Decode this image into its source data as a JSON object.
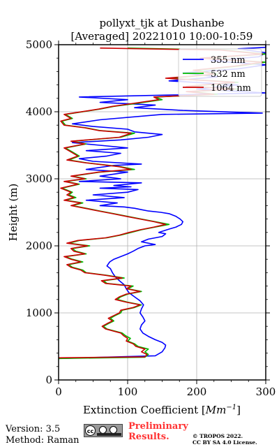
{
  "chart_data": {
    "type": "line",
    "title": [
      "pollyxt_tjk at Dushanbe",
      "[Averaged] 20221010 10:00-10:59"
    ],
    "xlabel_main": "Extinction Coefficient [",
    "xlabel_unit": "Mm",
    "xlabel_exp": "−1",
    "xlabel_end": "]",
    "ylabel": "Height (m)",
    "xlim": [
      0,
      300
    ],
    "ylim": [
      0,
      5000
    ],
    "xticks": [
      0,
      100,
      200,
      300
    ],
    "yticks": [
      0,
      1000,
      2000,
      3000,
      4000,
      5000
    ],
    "x_minor_step": 25,
    "y_minor_step": 200,
    "grid": true,
    "legend_position": "top-right",
    "series": [
      {
        "name": "355 nm",
        "color": "#0000ff",
        "points": [
          [
            0,
            320
          ],
          [
            140,
            360
          ],
          [
            150,
            420
          ],
          [
            154,
            480
          ],
          [
            155,
            520
          ],
          [
            150,
            560
          ],
          [
            140,
            600
          ],
          [
            130,
            650
          ],
          [
            122,
            700
          ],
          [
            118,
            760
          ],
          [
            120,
            820
          ],
          [
            125,
            880
          ],
          [
            122,
            940
          ],
          [
            118,
            1000
          ],
          [
            120,
            1060
          ],
          [
            123,
            1120
          ],
          [
            118,
            1180
          ],
          [
            110,
            1240
          ],
          [
            102,
            1300
          ],
          [
            98,
            1360
          ],
          [
            95,
            1420
          ],
          [
            88,
            1480
          ],
          [
            82,
            1540
          ],
          [
            78,
            1600
          ],
          [
            75,
            1660
          ],
          [
            70,
            1700
          ],
          [
            74,
            1760
          ],
          [
            80,
            1800
          ],
          [
            90,
            1840
          ],
          [
            100,
            1880
          ],
          [
            108,
            1920
          ],
          [
            115,
            1960
          ],
          [
            125,
            2000
          ],
          [
            140,
            2020
          ],
          [
            120,
            2060
          ],
          [
            130,
            2100
          ],
          [
            150,
            2140
          ],
          [
            155,
            2180
          ],
          [
            145,
            2200
          ],
          [
            160,
            2250
          ],
          [
            170,
            2280
          ],
          [
            178,
            2320
          ],
          [
            180,
            2360
          ],
          [
            176,
            2400
          ],
          [
            170,
            2440
          ],
          [
            160,
            2480
          ],
          [
            148,
            2500
          ],
          [
            130,
            2520
          ],
          [
            120,
            2540
          ],
          [
            110,
            2560
          ],
          [
            95,
            2580
          ],
          [
            60,
            2600
          ],
          [
            85,
            2640
          ],
          [
            40,
            2680
          ],
          [
            95,
            2720
          ],
          [
            50,
            2760
          ],
          [
            100,
            2800
          ],
          [
            115,
            2840
          ],
          [
            60,
            2860
          ],
          [
            105,
            2880
          ],
          [
            80,
            2900
          ],
          [
            120,
            2940
          ],
          [
            30,
            2960
          ],
          [
            90,
            3000
          ],
          [
            60,
            3040
          ],
          [
            100,
            3100
          ],
          [
            40,
            3140
          ],
          [
            80,
            3200
          ],
          [
            120,
            3220
          ],
          [
            50,
            3260
          ],
          [
            30,
            3300
          ],
          [
            70,
            3340
          ],
          [
            90,
            3380
          ],
          [
            40,
            3420
          ],
          [
            100,
            3460
          ],
          [
            60,
            3500
          ],
          [
            20,
            3540
          ],
          [
            90,
            3580
          ],
          [
            130,
            3620
          ],
          [
            150,
            3660
          ],
          [
            110,
            3700
          ],
          [
            100,
            3740
          ],
          [
            50,
            3780
          ],
          [
            20,
            3820
          ],
          [
            60,
            3880
          ],
          [
            150,
            3960
          ],
          [
            295,
            3980
          ],
          [
            180,
            4020
          ],
          [
            110,
            4060
          ],
          [
            140,
            4100
          ],
          [
            60,
            4140
          ],
          [
            100,
            4180
          ],
          [
            30,
            4220
          ],
          [
            300,
            4280
          ],
          [
            200,
            4340
          ],
          [
            260,
            4400
          ],
          [
            160,
            4460
          ],
          [
            230,
            4520
          ],
          [
            180,
            4580
          ],
          [
            260,
            4640
          ],
          [
            300,
            4700
          ],
          [
            220,
            4760
          ],
          [
            290,
            4820
          ],
          [
            300,
            4880
          ],
          [
            260,
            4940
          ],
          [
            300,
            4960
          ],
          [
            300,
            5000
          ]
        ]
      },
      {
        "name": "532 nm",
        "color": "#00bb00",
        "points": [
          [
            0,
            320
          ],
          [
            125,
            340
          ],
          [
            130,
            380
          ],
          [
            125,
            420
          ],
          [
            130,
            460
          ],
          [
            115,
            500
          ],
          [
            110,
            540
          ],
          [
            100,
            580
          ],
          [
            104,
            620
          ],
          [
            97,
            660
          ],
          [
            92,
            700
          ],
          [
            70,
            760
          ],
          [
            65,
            800
          ],
          [
            72,
            840
          ],
          [
            80,
            880
          ],
          [
            75,
            920
          ],
          [
            82,
            960
          ],
          [
            90,
            1000
          ],
          [
            92,
            1040
          ],
          [
            110,
            1080
          ],
          [
            120,
            1120
          ],
          [
            100,
            1160
          ],
          [
            85,
            1200
          ],
          [
            90,
            1240
          ],
          [
            100,
            1280
          ],
          [
            120,
            1320
          ],
          [
            100,
            1360
          ],
          [
            108,
            1400
          ],
          [
            70,
            1440
          ],
          [
            65,
            1480
          ],
          [
            95,
            1520
          ],
          [
            70,
            1560
          ],
          [
            40,
            1600
          ],
          [
            35,
            1640
          ],
          [
            20,
            1680
          ],
          [
            15,
            1720
          ],
          [
            35,
            1760
          ],
          [
            20,
            1800
          ],
          [
            10,
            1840
          ],
          [
            40,
            1880
          ],
          [
            25,
            1920
          ],
          [
            20,
            1960
          ],
          [
            45,
            2000
          ],
          [
            15,
            2040
          ],
          [
            30,
            2080
          ],
          [
            70,
            2120
          ],
          [
            90,
            2160
          ],
          [
            105,
            2200
          ],
          [
            120,
            2240
          ],
          [
            140,
            2280
          ],
          [
            160,
            2320
          ],
          [
            140,
            2360
          ],
          [
            120,
            2400
          ],
          [
            100,
            2440
          ],
          [
            80,
            2480
          ],
          [
            60,
            2520
          ],
          [
            40,
            2560
          ],
          [
            20,
            2600
          ],
          [
            35,
            2640
          ],
          [
            10,
            2680
          ],
          [
            25,
            2720
          ],
          [
            15,
            2760
          ],
          [
            20,
            2800
          ],
          [
            5,
            2860
          ],
          [
            30,
            2920
          ],
          [
            10,
            2960
          ],
          [
            40,
            3000
          ],
          [
            20,
            3040
          ],
          [
            60,
            3100
          ],
          [
            110,
            3140
          ],
          [
            90,
            3180
          ],
          [
            40,
            3240
          ],
          [
            15,
            3280
          ],
          [
            30,
            3340
          ],
          [
            20,
            3400
          ],
          [
            10,
            3460
          ],
          [
            40,
            3520
          ],
          [
            20,
            3560
          ],
          [
            90,
            3620
          ],
          [
            110,
            3680
          ],
          [
            60,
            3720
          ],
          [
            40,
            3760
          ],
          [
            10,
            3800
          ],
          [
            5,
            3860
          ],
          [
            20,
            3900
          ],
          [
            10,
            3960
          ],
          [
            60,
            4040
          ],
          [
            80,
            4080
          ],
          [
            110,
            4120
          ],
          [
            150,
            4180
          ],
          [
            140,
            4220
          ],
          [
            230,
            4260
          ],
          [
            190,
            4300
          ],
          [
            260,
            4340
          ],
          [
            190,
            4380
          ],
          [
            260,
            4440
          ],
          [
            160,
            4500
          ],
          [
            230,
            4560
          ],
          [
            200,
            4620
          ],
          [
            260,
            4680
          ],
          [
            300,
            4740
          ],
          [
            210,
            4800
          ],
          [
            300,
            4860
          ],
          [
            240,
            4920
          ],
          [
            100,
            4950
          ]
        ]
      },
      {
        "name": "1064 nm",
        "color": "#cc0000",
        "points": [
          [
            0,
            330
          ],
          [
            125,
            345
          ],
          [
            128,
            380
          ],
          [
            120,
            420
          ],
          [
            125,
            460
          ],
          [
            112,
            500
          ],
          [
            108,
            540
          ],
          [
            98,
            580
          ],
          [
            100,
            620
          ],
          [
            94,
            660
          ],
          [
            90,
            700
          ],
          [
            68,
            760
          ],
          [
            63,
            800
          ],
          [
            70,
            840
          ],
          [
            78,
            880
          ],
          [
            72,
            920
          ],
          [
            80,
            960
          ],
          [
            88,
            1000
          ],
          [
            90,
            1040
          ],
          [
            108,
            1080
          ],
          [
            118,
            1120
          ],
          [
            98,
            1160
          ],
          [
            82,
            1200
          ],
          [
            88,
            1240
          ],
          [
            98,
            1280
          ],
          [
            118,
            1320
          ],
          [
            98,
            1360
          ],
          [
            105,
            1400
          ],
          [
            68,
            1440
          ],
          [
            62,
            1480
          ],
          [
            92,
            1520
          ],
          [
            68,
            1560
          ],
          [
            38,
            1600
          ],
          [
            32,
            1640
          ],
          [
            18,
            1680
          ],
          [
            12,
            1720
          ],
          [
            32,
            1760
          ],
          [
            18,
            1800
          ],
          [
            8,
            1840
          ],
          [
            38,
            1880
          ],
          [
            22,
            1920
          ],
          [
            18,
            1960
          ],
          [
            42,
            2000
          ],
          [
            12,
            2040
          ],
          [
            28,
            2080
          ],
          [
            68,
            2120
          ],
          [
            88,
            2160
          ],
          [
            102,
            2200
          ],
          [
            118,
            2240
          ],
          [
            138,
            2280
          ],
          [
            155,
            2320
          ],
          [
            138,
            2360
          ],
          [
            118,
            2400
          ],
          [
            98,
            2440
          ],
          [
            78,
            2480
          ],
          [
            58,
            2520
          ],
          [
            38,
            2560
          ],
          [
            18,
            2600
          ],
          [
            32,
            2640
          ],
          [
            8,
            2680
          ],
          [
            22,
            2720
          ],
          [
            12,
            2760
          ],
          [
            18,
            2800
          ],
          [
            3,
            2860
          ],
          [
            28,
            2920
          ],
          [
            8,
            2960
          ],
          [
            38,
            3000
          ],
          [
            18,
            3040
          ],
          [
            58,
            3100
          ],
          [
            105,
            3140
          ],
          [
            88,
            3180
          ],
          [
            38,
            3240
          ],
          [
            12,
            3280
          ],
          [
            28,
            3340
          ],
          [
            18,
            3400
          ],
          [
            8,
            3460
          ],
          [
            38,
            3520
          ],
          [
            18,
            3560
          ],
          [
            88,
            3620
          ],
          [
            105,
            3680
          ],
          [
            58,
            3720
          ],
          [
            38,
            3760
          ],
          [
            8,
            3800
          ],
          [
            3,
            3860
          ],
          [
            18,
            3900
          ],
          [
            8,
            3960
          ],
          [
            58,
            4040
          ],
          [
            78,
            4080
          ],
          [
            105,
            4120
          ],
          [
            145,
            4180
          ],
          [
            138,
            4220
          ],
          [
            225,
            4260
          ],
          [
            185,
            4300
          ],
          [
            255,
            4340
          ],
          [
            185,
            4380
          ],
          [
            255,
            4440
          ],
          [
            155,
            4500
          ],
          [
            225,
            4560
          ],
          [
            195,
            4620
          ],
          [
            255,
            4680
          ],
          [
            295,
            4740
          ],
          [
            205,
            4800
          ],
          [
            295,
            4860
          ],
          [
            235,
            4920
          ],
          [
            60,
            4950
          ]
        ]
      }
    ]
  },
  "footer": {
    "version": "Version: 3.5",
    "method": "Method: Raman",
    "cc_text": "cc",
    "preliminary_line1": "Preliminary",
    "preliminary_line2": "Results.",
    "copyright_line1": "© TROPOS 2022.",
    "copyright_line2": "CC BY SA 4.0 License."
  }
}
